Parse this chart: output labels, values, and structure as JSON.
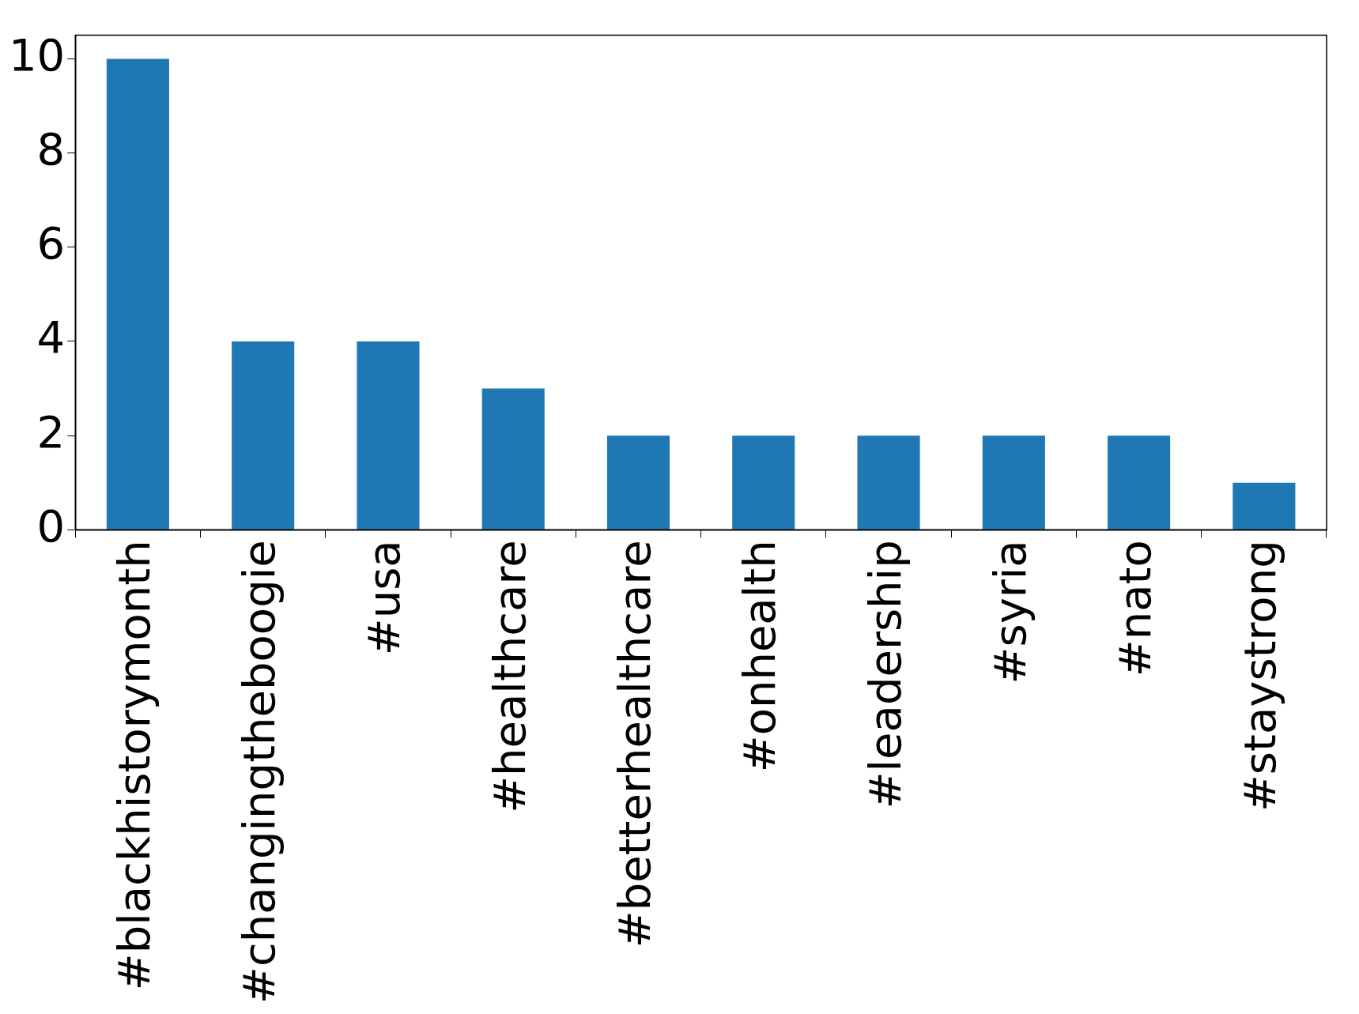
{
  "chart_data": {
    "type": "bar",
    "categories": [
      "#blackhistorymonth",
      "#changingtheboogie",
      "#usa",
      "#healthcare",
      "#betterhealthcare",
      "#onhealth",
      "#leadership",
      "#syria",
      "#nato",
      "#staystrong"
    ],
    "values": [
      10,
      4,
      4,
      3,
      2,
      2,
      2,
      2,
      2,
      1
    ],
    "color": "#1f77b4",
    "ylim": [
      0,
      10.5
    ],
    "yticks": [
      0,
      2,
      4,
      6,
      8,
      10
    ],
    "grid": false,
    "legend": false
  }
}
